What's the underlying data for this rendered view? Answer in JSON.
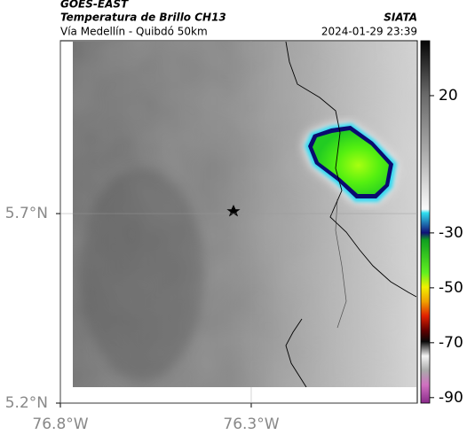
{
  "header": {
    "satellite": "GOES-EAST",
    "product": "Temperatura de Brillo CH13",
    "region": "Vía Medellín - Quibdó 50km",
    "source": "SIATA",
    "timestamp": "2024-01-29 23:39"
  },
  "map": {
    "xlim": [
      -76.8,
      -75.865
    ],
    "ylim": [
      5.2,
      6.156
    ],
    "xticks": [
      {
        "value": -76.8,
        "label": "76.8°W"
      },
      {
        "value": -76.3,
        "label": "76.3°W"
      }
    ],
    "yticks": [
      {
        "value": 5.7,
        "label": "5.7°N"
      },
      {
        "value": 5.2,
        "label": "5.2°N"
      }
    ]
  },
  "colorbar": {
    "lim": [
      -92,
      40
    ],
    "ticks": [
      20,
      -30,
      -50,
      -70,
      -90
    ]
  }
}
